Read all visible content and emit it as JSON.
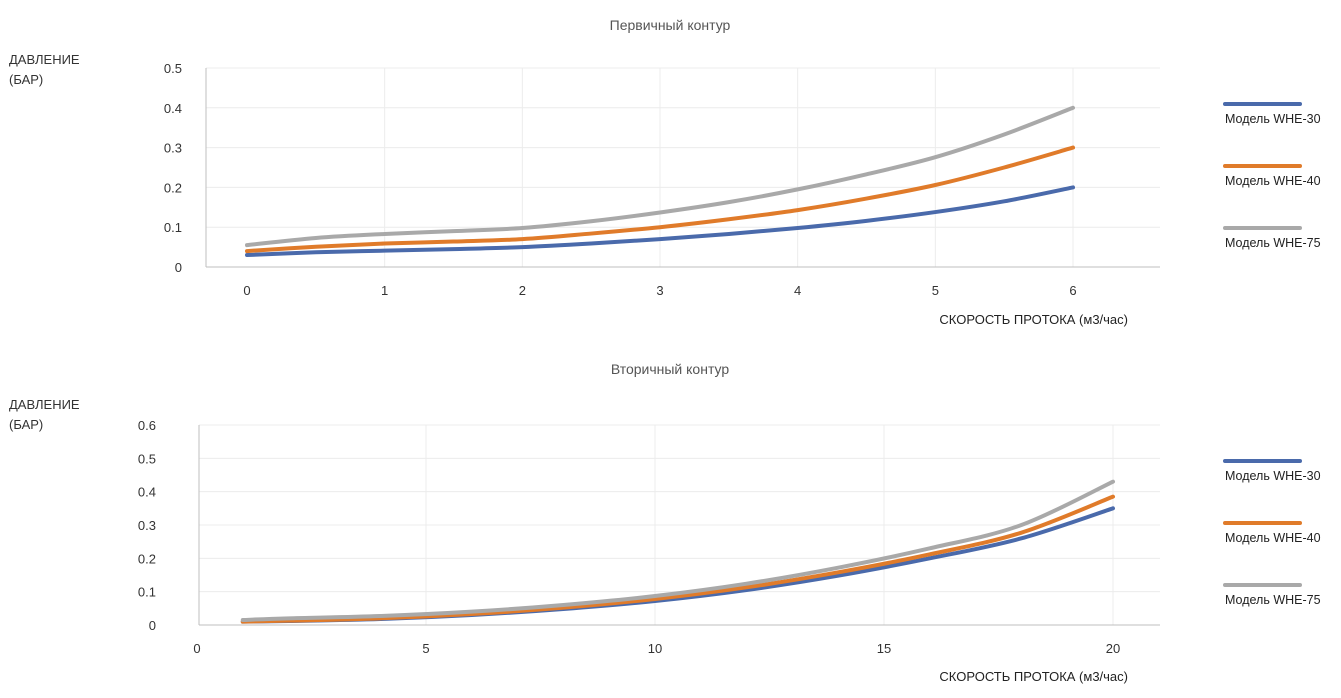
{
  "chart_data": [
    {
      "type": "line",
      "title": "Первичный контур",
      "ylabel": [
        "ДАВЛЕНИЕ",
        "(БАР)"
      ],
      "xlabel": "СКОРОСТЬ ПРОТОКА (м3/час)",
      "xlim": [
        0,
        6
      ],
      "ylim": [
        0,
        0.5
      ],
      "x_ticks": [
        "0",
        "1",
        "2",
        "3",
        "4",
        "5",
        "6"
      ],
      "y_ticks": [
        "0",
        "0.1",
        "0.2",
        "0.3",
        "0.4",
        "0.5"
      ],
      "grid": true,
      "legend_position": "right",
      "series": [
        {
          "name": "Модель WHE-30",
          "color": "#4a6aab",
          "x": [
            0,
            0.5,
            1,
            1.5,
            2,
            2.5,
            3,
            3.5,
            4,
            4.5,
            5,
            5.5,
            6
          ],
          "y": [
            0.03,
            0.037,
            0.041,
            0.045,
            0.05,
            0.059,
            0.07,
            0.083,
            0.098,
            0.116,
            0.138,
            0.165,
            0.2
          ]
        },
        {
          "name": "Модель WHE-40",
          "color": "#e07b2a",
          "x": [
            0,
            0.5,
            1,
            1.5,
            2,
            2.5,
            3,
            3.5,
            4,
            4.5,
            5,
            5.5,
            6
          ],
          "y": [
            0.04,
            0.051,
            0.059,
            0.064,
            0.07,
            0.084,
            0.1,
            0.12,
            0.143,
            0.172,
            0.206,
            0.25,
            0.3
          ]
        },
        {
          "name": "Модель WHE-75",
          "color": "#a9a9a9",
          "x": [
            0,
            0.5,
            1,
            1.5,
            2,
            2.5,
            3,
            3.5,
            4,
            4.5,
            5,
            5.5,
            6
          ],
          "y": [
            0.055,
            0.073,
            0.083,
            0.09,
            0.098,
            0.115,
            0.137,
            0.163,
            0.195,
            0.233,
            0.276,
            0.333,
            0.4
          ]
        }
      ]
    },
    {
      "type": "line",
      "title": "Вторичный контур",
      "ylabel": [
        "ДАВЛЕНИЕ",
        "(БАР)"
      ],
      "xlabel": "СКОРОСТЬ ПРОТОКА (м3/час)",
      "xlim": [
        0,
        20
      ],
      "ylim": [
        0,
        0.6
      ],
      "x_ticks": [
        "0",
        "5",
        "10",
        "15",
        "20"
      ],
      "y_ticks": [
        "0",
        "0.1",
        "0.2",
        "0.3",
        "0.4",
        "0.5",
        "0.6"
      ],
      "grid": true,
      "legend_position": "right",
      "series": [
        {
          "name": "Модель WHE-30",
          "color": "#4a6aab",
          "x": [
            1,
            2,
            4,
            6,
            8,
            10,
            12,
            14,
            16,
            18,
            20
          ],
          "y": [
            0.01,
            0.012,
            0.018,
            0.03,
            0.048,
            0.072,
            0.105,
            0.148,
            0.2,
            0.26,
            0.35
          ]
        },
        {
          "name": "Модель WHE-40",
          "color": "#e07b2a",
          "x": [
            1,
            2,
            4,
            6,
            8,
            10,
            12,
            14,
            16,
            18,
            20
          ],
          "y": [
            0.01,
            0.013,
            0.02,
            0.033,
            0.052,
            0.078,
            0.113,
            0.158,
            0.212,
            0.277,
            0.385
          ]
        },
        {
          "name": "Модель WHE-75",
          "color": "#a9a9a9",
          "x": [
            1,
            2,
            4,
            6,
            8,
            10,
            12,
            14,
            16,
            18,
            20
          ],
          "y": [
            0.015,
            0.02,
            0.027,
            0.04,
            0.06,
            0.087,
            0.124,
            0.172,
            0.23,
            0.3,
            0.43
          ]
        }
      ]
    }
  ]
}
